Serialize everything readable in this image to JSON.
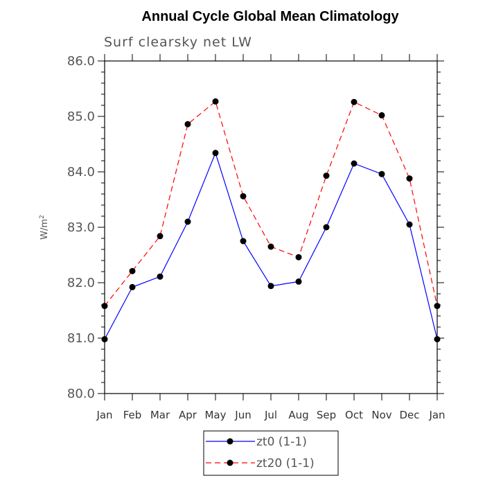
{
  "chart_data": {
    "type": "line",
    "title": "Annual Cycle Global Mean Climatology",
    "subtitle": "Surf clearsky net LW",
    "ylabel_base": "W/m",
    "ylabel_sup": "2",
    "xlabel": "",
    "categories": [
      "Jan",
      "Feb",
      "Mar",
      "Apr",
      "May",
      "Jun",
      "Jul",
      "Aug",
      "Sep",
      "Oct",
      "Nov",
      "Dec",
      "Jan"
    ],
    "ylim": [
      80.0,
      86.0
    ],
    "yticks": [
      "80.0",
      "81.0",
      "82.0",
      "83.0",
      "84.0",
      "85.0",
      "86.0"
    ],
    "legend_position": "bottom",
    "series": [
      {
        "name": "zt0 (1-1)",
        "color": "#0000ff",
        "dash": "solid",
        "values": [
          80.98,
          81.92,
          82.11,
          83.1,
          84.34,
          82.75,
          81.94,
          82.02,
          83.0,
          84.15,
          83.96,
          83.05,
          80.98
        ]
      },
      {
        "name": "zt20 (1-1)",
        "color": "#ff0000",
        "dash": "dashed",
        "values": [
          81.58,
          82.21,
          82.84,
          84.86,
          85.27,
          83.56,
          82.65,
          82.46,
          83.93,
          85.26,
          85.02,
          83.88,
          81.58
        ]
      }
    ]
  }
}
